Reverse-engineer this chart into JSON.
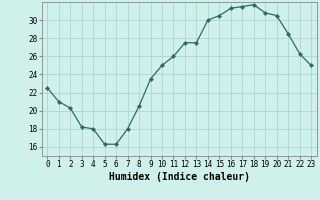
{
  "x": [
    0,
    1,
    2,
    3,
    4,
    5,
    6,
    7,
    8,
    9,
    10,
    11,
    12,
    13,
    14,
    15,
    16,
    17,
    18,
    19,
    20,
    21,
    22,
    23
  ],
  "y": [
    22.5,
    21.0,
    20.3,
    18.2,
    18.0,
    16.3,
    16.3,
    18.0,
    20.5,
    23.5,
    25.0,
    26.0,
    27.5,
    27.5,
    30.0,
    30.5,
    31.3,
    31.5,
    31.7,
    30.8,
    30.5,
    28.5,
    26.3,
    25.0
  ],
  "line_color": "#2e6b5e",
  "marker": "D",
  "marker_size": 2.0,
  "bg_color": "#cff0eb",
  "grid_color": "#aad8d0",
  "xlabel": "Humidex (Indice chaleur)",
  "xlabel_fontsize": 7,
  "tick_fontsize": 5.5,
  "ylim": [
    15,
    32
  ],
  "yticks": [
    16,
    18,
    20,
    22,
    24,
    26,
    28,
    30
  ],
  "xlim": [
    -0.5,
    23.5
  ]
}
